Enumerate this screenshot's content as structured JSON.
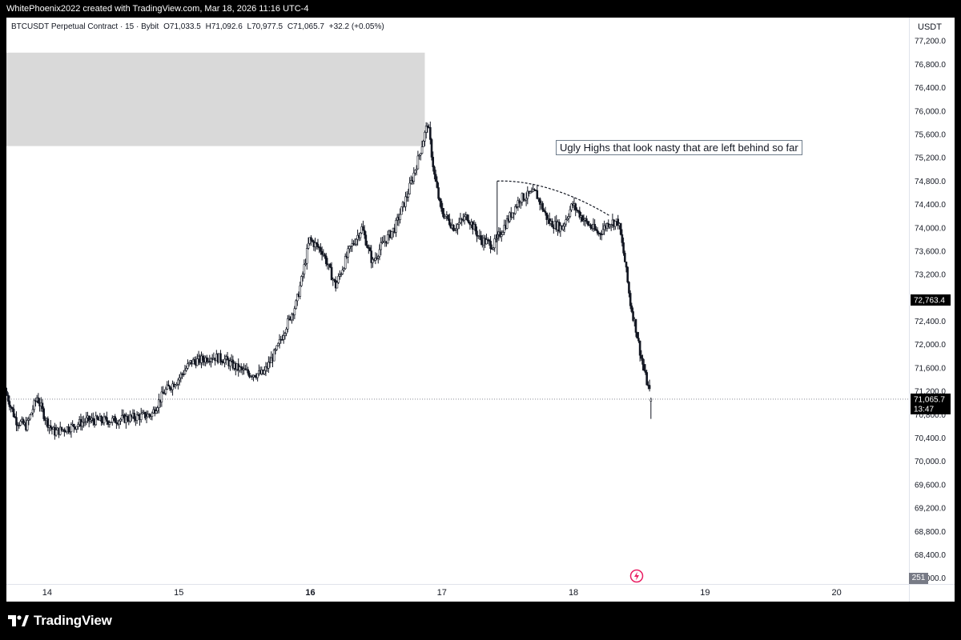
{
  "header": {
    "attribution": "WhitePhoenix2022 created with TradingView.com, Mar 18, 2026 11:16 UTC-4"
  },
  "legend": {
    "symbol": "BTCUSDT Perpetual Contract · 15 · Bybit",
    "open": "O71,033.5",
    "high": "H71,092.6",
    "low": "L70,977.5",
    "close": "C71,065.7",
    "change": "+32.2 (+0.05%)"
  },
  "axis": {
    "unit": "USDT"
  },
  "annotation": {
    "text": "Ugly Highs that look nasty that are left behind so far"
  },
  "labels": {
    "level_price": "72,763.4",
    "last_price": "71,065.7",
    "countdown": "13:47",
    "volume": "251"
  },
  "footer": {
    "brand": "TradingView"
  },
  "colors": {
    "candle": "#131722",
    "zone": "#d9d9d9",
    "price_label_bg": "#000000",
    "volume_badge": "#787b86",
    "alert": "#e91e63"
  },
  "icons": {
    "alert": "flash-icon",
    "brand": "tradingview-logo-icon"
  },
  "chart_data": {
    "type": "candlestick",
    "ylim": [
      67900,
      77600
    ],
    "y_ticks": [
      68000,
      68400,
      68800,
      69200,
      69600,
      70000,
      70400,
      70800,
      71200,
      71600,
      72000,
      72400,
      72800,
      73200,
      73600,
      74000,
      74400,
      74800,
      75200,
      75600,
      76000,
      76400,
      76800,
      77200
    ],
    "x_ticks": [
      {
        "label": "14",
        "day": 14,
        "bold": false
      },
      {
        "label": "15",
        "day": 15,
        "bold": false
      },
      {
        "label": "16",
        "day": 16,
        "bold": true
      },
      {
        "label": "17",
        "day": 17,
        "bold": false
      },
      {
        "label": "18",
        "day": 18,
        "bold": false
      },
      {
        "label": "19",
        "day": 19,
        "bold": false
      },
      {
        "label": "20",
        "day": 20,
        "bold": false
      }
    ],
    "xlim_days": [
      13.69,
      20.55
    ],
    "price_path": [
      [
        13.69,
        71200
      ],
      [
        13.77,
        70700
      ],
      [
        13.85,
        70600
      ],
      [
        13.93,
        71100
      ],
      [
        14.0,
        70700
      ],
      [
        14.06,
        70500
      ],
      [
        14.2,
        70600
      ],
      [
        14.3,
        70700
      ],
      [
        14.5,
        70700
      ],
      [
        14.65,
        70750
      ],
      [
        14.8,
        70800
      ],
      [
        14.9,
        71200
      ],
      [
        15.0,
        71400
      ],
      [
        15.1,
        71700
      ],
      [
        15.2,
        71750
      ],
      [
        15.25,
        71800
      ],
      [
        15.35,
        71750
      ],
      [
        15.45,
        71600
      ],
      [
        15.55,
        71500
      ],
      [
        15.65,
        71500
      ],
      [
        15.75,
        71900
      ],
      [
        15.82,
        72300
      ],
      [
        15.9,
        72700
      ],
      [
        15.95,
        73200
      ],
      [
        16.0,
        73800
      ],
      [
        16.1,
        73600
      ],
      [
        16.2,
        73000
      ],
      [
        16.3,
        73600
      ],
      [
        16.4,
        74000
      ],
      [
        16.48,
        73400
      ],
      [
        16.55,
        73700
      ],
      [
        16.65,
        74000
      ],
      [
        16.75,
        74600
      ],
      [
        16.83,
        75200
      ],
      [
        16.9,
        75800
      ],
      [
        16.95,
        74900
      ],
      [
        17.0,
        74300
      ],
      [
        17.1,
        74000
      ],
      [
        17.2,
        74200
      ],
      [
        17.3,
        73800
      ],
      [
        17.4,
        73700
      ],
      [
        17.5,
        74100
      ],
      [
        17.6,
        74500
      ],
      [
        17.72,
        74600
      ],
      [
        17.82,
        74100
      ],
      [
        17.92,
        74000
      ],
      [
        18.0,
        74400
      ],
      [
        18.1,
        74100
      ],
      [
        18.2,
        73900
      ],
      [
        18.28,
        74100
      ],
      [
        18.35,
        74100
      ],
      [
        18.4,
        73400
      ],
      [
        18.44,
        72700
      ],
      [
        18.48,
        72300
      ],
      [
        18.52,
        71800
      ],
      [
        18.56,
        71400
      ],
      [
        18.6,
        71065.7
      ]
    ],
    "last_candle": {
      "open": 71033.5,
      "high": 71092.6,
      "low": 70977.5,
      "close": 71065.7
    },
    "last_price": 71065.7,
    "level_price": 72763.4,
    "supply_zone": {
      "x_start_day": 13.69,
      "x_end_day": 16.87,
      "y_low": 75400,
      "y_high": 77000
    },
    "curve": {
      "points": [
        [
          17.42,
          74800
        ],
        [
          17.65,
          74820
        ],
        [
          17.95,
          74650
        ],
        [
          18.28,
          74200
        ]
      ],
      "style": "dashed"
    },
    "high_marker": {
      "day": 17.42,
      "price": 74800
    }
  }
}
